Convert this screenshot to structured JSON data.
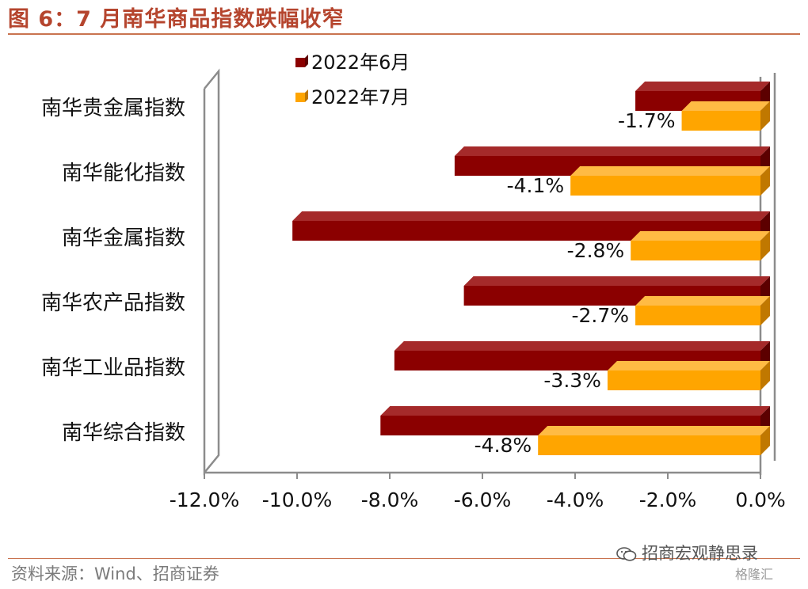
{
  "title": "图 6：7 月南华商品指数跌幅收窄",
  "source": "资料来源：Wind、招商证券",
  "watermark": "招商宏观静思录",
  "logo_text": "格隆汇",
  "colors": {
    "june": "#8b0000",
    "july": "#ffa500",
    "title": "#b5452e",
    "rule": "#c9734f"
  },
  "chart_data": {
    "type": "bar",
    "orientation": "horizontal",
    "categories": [
      "南华贵金属指数",
      "南华能化指数",
      "南华金属指数",
      "南华农产品指数",
      "南华工业品指数",
      "南华综合指数"
    ],
    "series": [
      {
        "name": "2022年6月",
        "values": [
          -2.7,
          -6.6,
          -10.1,
          -6.4,
          -7.9,
          -8.2
        ],
        "labels": [
          "",
          "",
          "",
          "",
          "",
          ""
        ]
      },
      {
        "name": "2022年7月",
        "values": [
          -1.7,
          -4.1,
          -2.8,
          -2.7,
          -3.3,
          -4.8
        ],
        "labels": [
          "-1.7%",
          "-4.1%",
          "-2.8%",
          "-2.7%",
          "-3.3%",
          "-4.8%"
        ]
      }
    ],
    "x_ticks": [
      "-12.0%",
      "-10.0%",
      "-8.0%",
      "-6.0%",
      "-4.0%",
      "-2.0%",
      "0.0%"
    ],
    "xlim": [
      -12,
      0
    ],
    "legend_position": "top",
    "grid": false
  }
}
